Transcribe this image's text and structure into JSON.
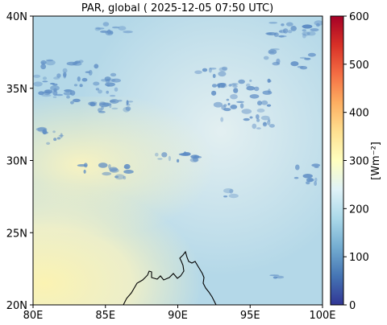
{
  "map": {
    "title": "PAR, global ( 2025-12-05 07:50 UTC)",
    "lon_range": [
      80,
      100
    ],
    "lat_range": [
      20,
      40
    ],
    "x_ticks": [
      {
        "value": 80,
        "label": "80E"
      },
      {
        "value": 85,
        "label": "85E"
      },
      {
        "value": 90,
        "label": "90E"
      },
      {
        "value": 95,
        "label": "95E"
      },
      {
        "value": 100,
        "label": "100E"
      }
    ],
    "y_ticks": [
      {
        "value": 20,
        "label": "20N"
      },
      {
        "value": 25,
        "label": "25N"
      },
      {
        "value": 30,
        "label": "30N"
      },
      {
        "value": 35,
        "label": "35N"
      },
      {
        "value": 40,
        "label": "40N"
      }
    ]
  },
  "colorbar": {
    "label": "[Wm⁻²]",
    "range": [
      0,
      600
    ],
    "ticks": [
      0,
      100,
      200,
      300,
      400,
      500,
      600
    ],
    "colors": [
      "#313695",
      "#4575b4",
      "#74add1",
      "#abd9e9",
      "#e0f3f8",
      "#ffffbf",
      "#fee090",
      "#fdae61",
      "#f46d43",
      "#d73027",
      "#a50026"
    ]
  },
  "field": {
    "background_color": "#b4d8e8",
    "clear_sky_color": "#fbf5b8",
    "cloud_color": "#5d8cc4"
  }
}
